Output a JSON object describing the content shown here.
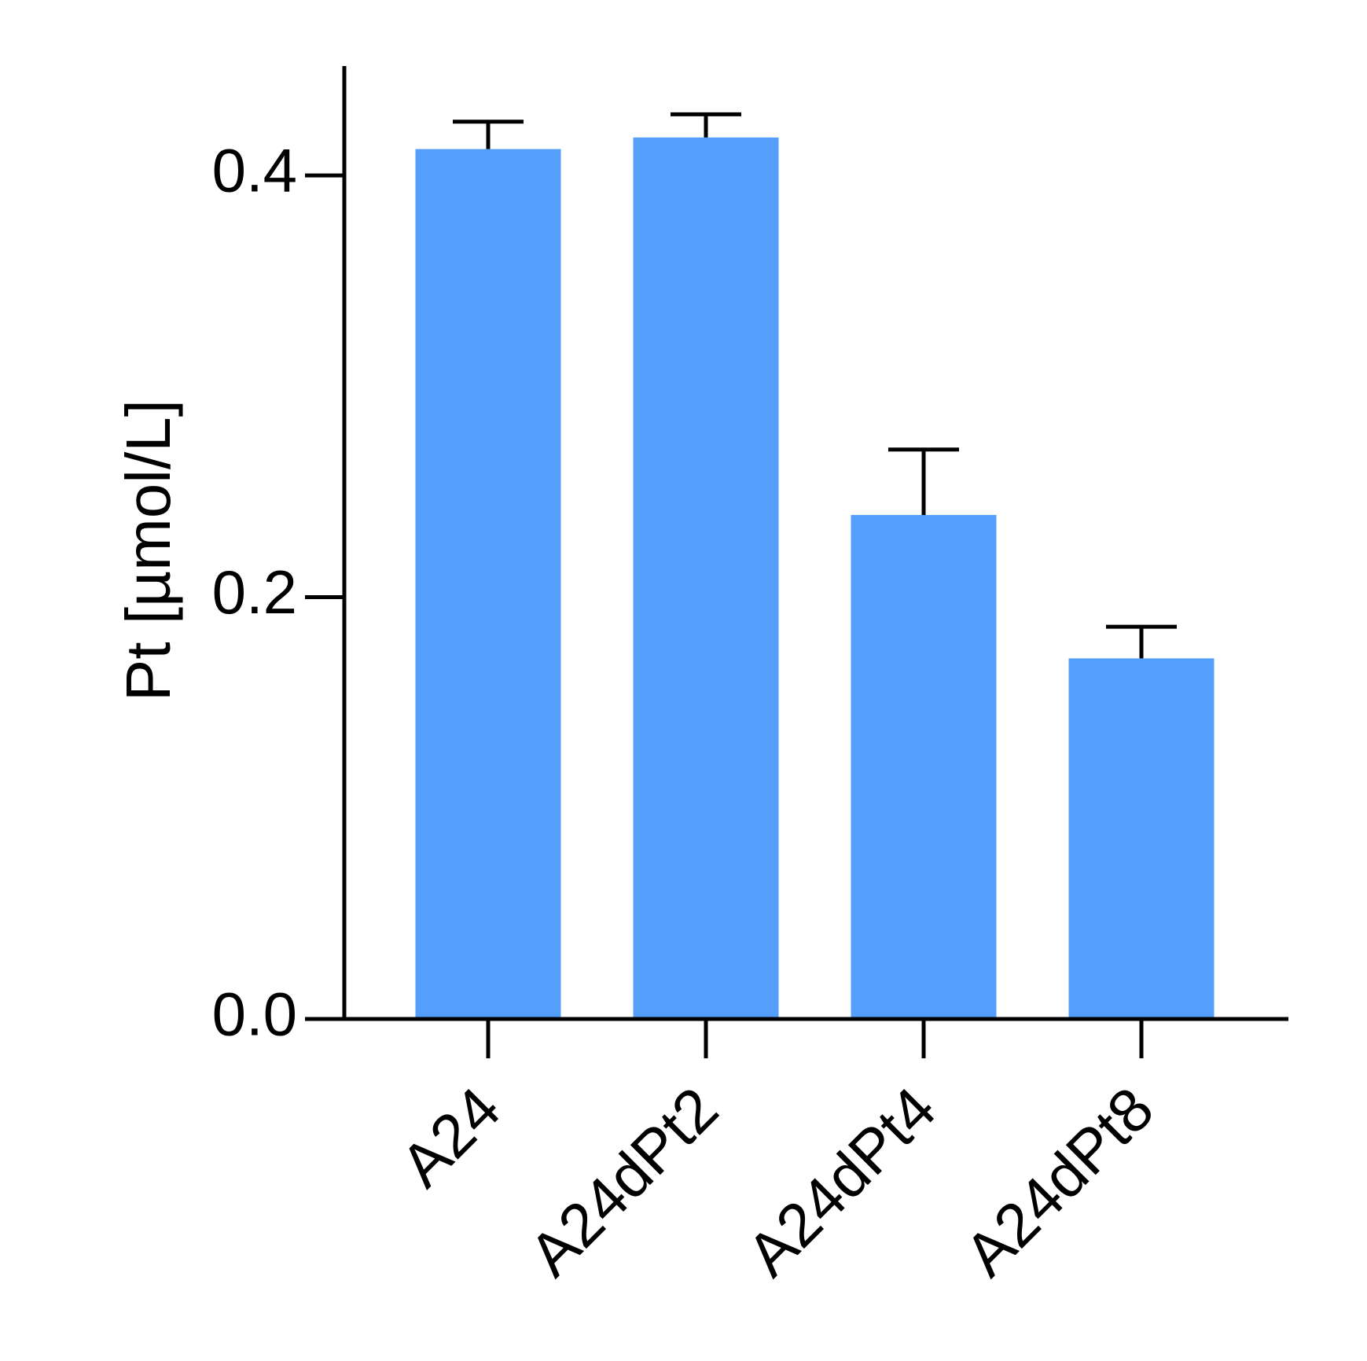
{
  "chart_data": {
    "type": "bar",
    "y_label": "Pt [µmol/L]",
    "categories": [
      "A24",
      "A24dPt2",
      "A24dPt4",
      "A24dPt8"
    ],
    "values": [
      0.4125,
      0.418,
      0.239,
      0.171
    ],
    "errors": [
      0.013,
      0.011,
      0.031,
      0.015
    ],
    "color": "#559ffc",
    "ylim": [
      0,
      0.45
    ],
    "yticks": [
      {
        "value": 0,
        "label": "0.0"
      },
      0.2,
      0.4
    ],
    "grid": false
  }
}
